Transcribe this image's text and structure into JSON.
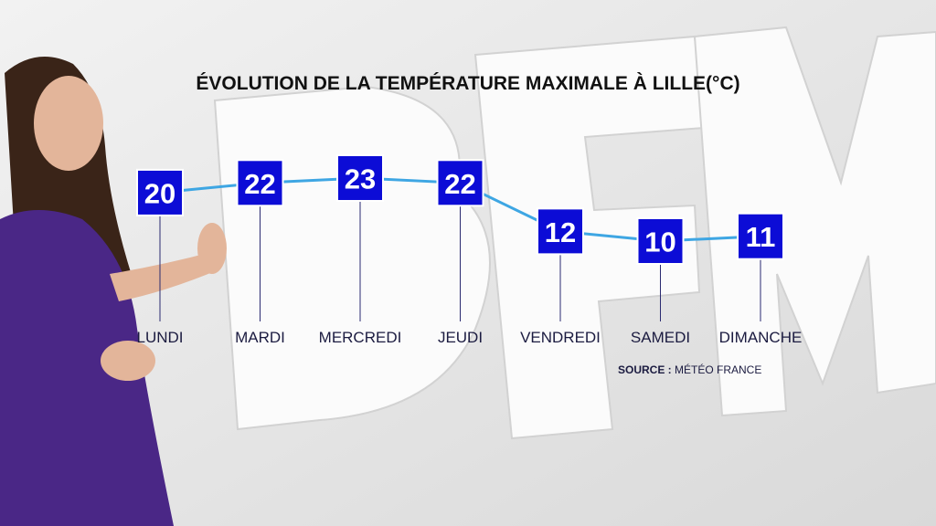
{
  "chart_data": {
    "type": "line",
    "title": "ÉVOLUTION DE LA TEMPÉRATURE MAXIMALE À LILLE(°C)",
    "categories": [
      "LUNDI",
      "MARDI",
      "MERCREDI",
      "JEUDI",
      "VENDREDI",
      "SAMEDI",
      "DIMANCHE"
    ],
    "values": [
      20,
      22,
      23,
      22,
      12,
      10,
      11
    ],
    "line_color": "#3ea6e3",
    "box_color": "#0c0cd6",
    "source": {
      "label": "SOURCE :",
      "text": "MÉTÉO FRANCE"
    }
  }
}
